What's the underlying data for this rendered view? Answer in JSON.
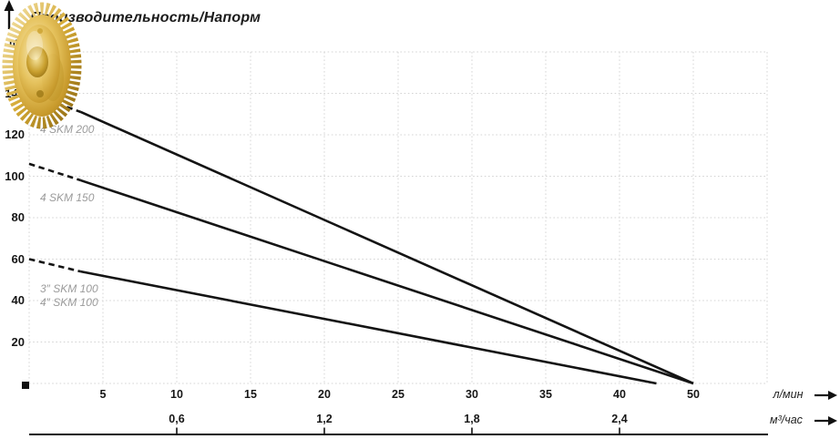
{
  "title": "Производительность/Напорм",
  "y_unit_label": "m",
  "x_unit_primary": "л/мин",
  "x_unit_secondary": "м³/час",
  "icons": {
    "y_axis_arrow": "↑",
    "unit_arrow": "→",
    "origin_marker": "■",
    "impeller": "brass-pump-impeller-photo"
  },
  "chart_data": {
    "type": "line",
    "title": "Производительность/Напорм",
    "grid": true,
    "legend_position": "inline-left-of-curves",
    "y_axis": {
      "label": "m",
      "ticks": [
        140,
        120,
        100,
        80,
        60,
        40,
        20
      ],
      "range": [
        0,
        160
      ],
      "grid_step_m": 20
    },
    "x_axis_primary": {
      "label": "л/мин",
      "tick_labels": [
        "5",
        "10",
        "15",
        "20",
        "25",
        "30",
        "35",
        "40",
        "50"
      ]
    },
    "x_axis_secondary": {
      "label": "м³/час",
      "ticks": [
        {
          "label": "0,6",
          "at_lmin": 10
        },
        {
          "label": "1,2",
          "at_lmin": 20
        },
        {
          "label": "1,8",
          "at_lmin": 30
        },
        {
          "label": "2,4",
          "at_lmin": 40
        }
      ]
    },
    "series": [
      {
        "name": "4 SKM 200",
        "label_lines": [
          "4 SKM 200"
        ],
        "dashed_points": [
          [
            0,
            140
          ],
          [
            3.5,
            131
          ]
        ],
        "solid_points": [
          [
            3.5,
            131
          ],
          [
            50,
            0
          ]
        ]
      },
      {
        "name": "4 SKM 150",
        "label_lines": [
          "4 SKM 150"
        ],
        "dashed_points": [
          [
            0,
            106
          ],
          [
            3.5,
            98
          ]
        ],
        "solid_points": [
          [
            3.5,
            98
          ],
          [
            50,
            0
          ]
        ]
      },
      {
        "name": "SKM 100",
        "label_lines": [
          "3″ SKM 100",
          "4″ SKM 100"
        ],
        "dashed_points": [
          [
            0,
            60
          ],
          [
            3.5,
            54
          ]
        ],
        "solid_points": [
          [
            3.5,
            54
          ],
          [
            45,
            0
          ]
        ]
      }
    ],
    "colors": {
      "curve": "#141414",
      "grid_dots": "#d4d4d4",
      "series_label": "#9b9b9b",
      "text": "#1a1a1a"
    }
  }
}
